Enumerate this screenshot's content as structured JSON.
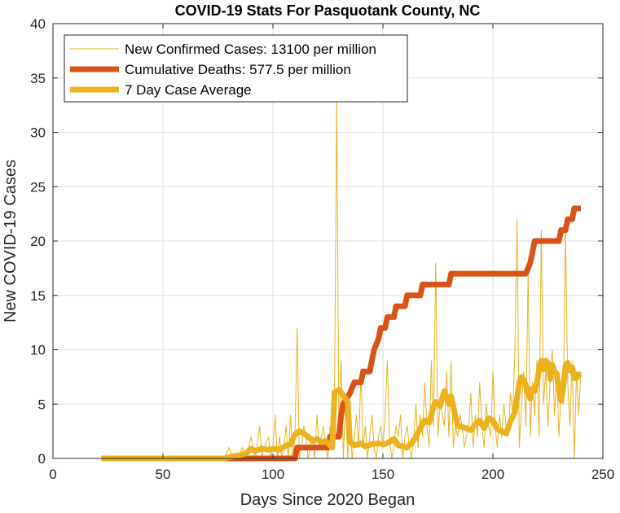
{
  "chart_data": {
    "type": "line",
    "title": "COVID-19 Stats For Pasquotank County, NC",
    "xlabel": "Days Since 2020 Began",
    "ylabel": "New COVID-19 Cases",
    "xlim": [
      0,
      250
    ],
    "ylim": [
      0,
      40
    ],
    "xticks": [
      0,
      50,
      100,
      150,
      200,
      250
    ],
    "yticks": [
      0,
      5,
      10,
      15,
      20,
      25,
      30,
      35,
      40
    ],
    "x_tick_labels": [
      "0",
      "50",
      "100",
      "150",
      "200",
      "250"
    ],
    "y_tick_labels": [
      "0",
      "5",
      "10",
      "15",
      "20",
      "25",
      "30",
      "35",
      "40"
    ],
    "grid": true,
    "legend_position": "top-left",
    "series": [
      {
        "name": "New Confirmed Cases: 13100 per million",
        "color": "#EDB120",
        "line_width": "thin",
        "points": [
          [
            22,
            0
          ],
          [
            40,
            0
          ],
          [
            60,
            0
          ],
          [
            78,
            0
          ],
          [
            80,
            1
          ],
          [
            82,
            0
          ],
          [
            84,
            0
          ],
          [
            86,
            1
          ],
          [
            88,
            0
          ],
          [
            90,
            2
          ],
          [
            92,
            0
          ],
          [
            94,
            3
          ],
          [
            95,
            0
          ],
          [
            96,
            1
          ],
          [
            98,
            2
          ],
          [
            99,
            0
          ],
          [
            100,
            1
          ],
          [
            101,
            4
          ],
          [
            102,
            0
          ],
          [
            103,
            2
          ],
          [
            104,
            0
          ],
          [
            105,
            1
          ],
          [
            106,
            3
          ],
          [
            107,
            0
          ],
          [
            108,
            4
          ],
          [
            109,
            0
          ],
          [
            110,
            2
          ],
          [
            111,
            12
          ],
          [
            112,
            0
          ],
          [
            113,
            1
          ],
          [
            114,
            3
          ],
          [
            115,
            2
          ],
          [
            116,
            0
          ],
          [
            117,
            1
          ],
          [
            118,
            2
          ],
          [
            119,
            0
          ],
          [
            120,
            4
          ],
          [
            121,
            1
          ],
          [
            122,
            2
          ],
          [
            123,
            3
          ],
          [
            124,
            1
          ],
          [
            125,
            0
          ],
          [
            126,
            3
          ],
          [
            127,
            1
          ],
          [
            128,
            6
          ],
          [
            129,
            33
          ],
          [
            130,
            2
          ],
          [
            131,
            9
          ],
          [
            132,
            0
          ],
          [
            133,
            5
          ],
          [
            134,
            0
          ],
          [
            135,
            3
          ],
          [
            136,
            0
          ],
          [
            137,
            2
          ],
          [
            138,
            4
          ],
          [
            139,
            1
          ],
          [
            140,
            8
          ],
          [
            141,
            1
          ],
          [
            142,
            3
          ],
          [
            143,
            0
          ],
          [
            144,
            2
          ],
          [
            145,
            4
          ],
          [
            146,
            1
          ],
          [
            147,
            0
          ],
          [
            148,
            2
          ],
          [
            149,
            3
          ],
          [
            150,
            1
          ],
          [
            151,
            4
          ],
          [
            152,
            9
          ],
          [
            153,
            2
          ],
          [
            154,
            0
          ],
          [
            155,
            1
          ],
          [
            156,
            3
          ],
          [
            157,
            2
          ],
          [
            158,
            4
          ],
          [
            159,
            0
          ],
          [
            160,
            2
          ],
          [
            161,
            3
          ],
          [
            162,
            1
          ],
          [
            163,
            0
          ],
          [
            164,
            2
          ],
          [
            165,
            5
          ],
          [
            166,
            1
          ],
          [
            167,
            4
          ],
          [
            168,
            2
          ],
          [
            169,
            7
          ],
          [
            170,
            3
          ],
          [
            171,
            1
          ],
          [
            172,
            9
          ],
          [
            173,
            3
          ],
          [
            174,
            18
          ],
          [
            175,
            2
          ],
          [
            176,
            5
          ],
          [
            177,
            4
          ],
          [
            178,
            3
          ],
          [
            179,
            8
          ],
          [
            180,
            2
          ],
          [
            181,
            9
          ],
          [
            182,
            1
          ],
          [
            183,
            3
          ],
          [
            184,
            2
          ],
          [
            185,
            4
          ],
          [
            186,
            3
          ],
          [
            187,
            1
          ],
          [
            188,
            2
          ],
          [
            189,
            3
          ],
          [
            190,
            6
          ],
          [
            191,
            1
          ],
          [
            192,
            4
          ],
          [
            193,
            2
          ],
          [
            194,
            7
          ],
          [
            195,
            3
          ],
          [
            196,
            1
          ],
          [
            197,
            5
          ],
          [
            198,
            3
          ],
          [
            199,
            2
          ],
          [
            200,
            8
          ],
          [
            201,
            3
          ],
          [
            202,
            1
          ],
          [
            203,
            4
          ],
          [
            204,
            2
          ],
          [
            205,
            5
          ],
          [
            206,
            3
          ],
          [
            207,
            2
          ],
          [
            208,
            6
          ],
          [
            209,
            4
          ],
          [
            210,
            10
          ],
          [
            211,
            22
          ],
          [
            212,
            1
          ],
          [
            213,
            5
          ],
          [
            214,
            8
          ],
          [
            215,
            3
          ],
          [
            216,
            17
          ],
          [
            217,
            2
          ],
          [
            218,
            7
          ],
          [
            219,
            4
          ],
          [
            220,
            9
          ],
          [
            221,
            2
          ],
          [
            222,
            21
          ],
          [
            223,
            5
          ],
          [
            224,
            8
          ],
          [
            225,
            3
          ],
          [
            226,
            7
          ],
          [
            227,
            10
          ],
          [
            228,
            4
          ],
          [
            229,
            8
          ],
          [
            230,
            2
          ],
          [
            231,
            6
          ],
          [
            232,
            5
          ],
          [
            233,
            21
          ],
          [
            234,
            7
          ],
          [
            235,
            3
          ],
          [
            236,
            9
          ],
          [
            237,
            0
          ],
          [
            238,
            8
          ],
          [
            239,
            4
          ],
          [
            240,
            8
          ]
        ]
      },
      {
        "name": "Cumulative Deaths: 577.5 per million",
        "color": "#D95319",
        "line_width": "thick",
        "points": [
          [
            22,
            0
          ],
          [
            100,
            0
          ],
          [
            110,
            0
          ],
          [
            111,
            1
          ],
          [
            120,
            1
          ],
          [
            121,
            1
          ],
          [
            125,
            1
          ],
          [
            126,
            2
          ],
          [
            130,
            2
          ],
          [
            131,
            4
          ],
          [
            132,
            5
          ],
          [
            135,
            6
          ],
          [
            137,
            7
          ],
          [
            140,
            7
          ],
          [
            141,
            8
          ],
          [
            144,
            8
          ],
          [
            145,
            9
          ],
          [
            146,
            10
          ],
          [
            148,
            11
          ],
          [
            149,
            12
          ],
          [
            151,
            12
          ],
          [
            152,
            13
          ],
          [
            155,
            13
          ],
          [
            156,
            14
          ],
          [
            160,
            14
          ],
          [
            161,
            15
          ],
          [
            167,
            15
          ],
          [
            168,
            16
          ],
          [
            180,
            16
          ],
          [
            181,
            17
          ],
          [
            200,
            17
          ],
          [
            205,
            17
          ],
          [
            215,
            17
          ],
          [
            217,
            18
          ],
          [
            218,
            19
          ],
          [
            219,
            20
          ],
          [
            224,
            20
          ],
          [
            225,
            20
          ],
          [
            230,
            20
          ],
          [
            231,
            21
          ],
          [
            233,
            21
          ],
          [
            234,
            22
          ],
          [
            236,
            22
          ],
          [
            237,
            23
          ],
          [
            240,
            23
          ]
        ]
      },
      {
        "name": "7 Day Case Average",
        "color": "#EDB120",
        "line_width": "thick",
        "points": [
          [
            22,
            0
          ],
          [
            40,
            0
          ],
          [
            60,
            0
          ],
          [
            78,
            0
          ],
          [
            82,
            0.2
          ],
          [
            85,
            0.3
          ],
          [
            88,
            0.5
          ],
          [
            90,
            0.9
          ],
          [
            92,
            0.7
          ],
          [
            95,
            0.9
          ],
          [
            98,
            0.8
          ],
          [
            100,
            0.9
          ],
          [
            103,
            0.8
          ],
          [
            106,
            1.2
          ],
          [
            108,
            1.3
          ],
          [
            110,
            2.2
          ],
          [
            112,
            2.5
          ],
          [
            114,
            2.3
          ],
          [
            116,
            2.0
          ],
          [
            118,
            1.6
          ],
          [
            120,
            1.8
          ],
          [
            122,
            1.5
          ],
          [
            124,
            1.6
          ],
          [
            126,
            1.2
          ],
          [
            127,
            1.0
          ],
          [
            128,
            6.1
          ],
          [
            130,
            6.3
          ],
          [
            132,
            5.8
          ],
          [
            134,
            5.2
          ],
          [
            135,
            1.5
          ],
          [
            137,
            1.2
          ],
          [
            140,
            1.4
          ],
          [
            142,
            1.1
          ],
          [
            145,
            1.3
          ],
          [
            148,
            1.4
          ],
          [
            150,
            1.3
          ],
          [
            152,
            1.4
          ],
          [
            155,
            1.8
          ],
          [
            157,
            1.2
          ],
          [
            159,
            1.1
          ],
          [
            161,
            1.0
          ],
          [
            163,
            1.4
          ],
          [
            165,
            2.0
          ],
          [
            167,
            2.8
          ],
          [
            169,
            3.5
          ],
          [
            171,
            3.3
          ],
          [
            172,
            4.0
          ],
          [
            173,
            4.8
          ],
          [
            174,
            5.2
          ],
          [
            175,
            5.0
          ],
          [
            176,
            4.8
          ],
          [
            177,
            5.6
          ],
          [
            178,
            6.2
          ],
          [
            179,
            5.6
          ],
          [
            180,
            5.0
          ],
          [
            181,
            5.7
          ],
          [
            182,
            4.8
          ],
          [
            183,
            3.8
          ],
          [
            184,
            3.0
          ],
          [
            186,
            2.9
          ],
          [
            188,
            2.8
          ],
          [
            190,
            2.6
          ],
          [
            192,
            3.1
          ],
          [
            194,
            3.5
          ],
          [
            196,
            2.8
          ],
          [
            198,
            3.7
          ],
          [
            200,
            3.5
          ],
          [
            202,
            2.7
          ],
          [
            204,
            2.5
          ],
          [
            206,
            2.3
          ],
          [
            208,
            3.4
          ],
          [
            210,
            4.3
          ],
          [
            211,
            5.6
          ],
          [
            212,
            7.0
          ],
          [
            213,
            7.5
          ],
          [
            214,
            7.2
          ],
          [
            215,
            6.7
          ],
          [
            216,
            6.0
          ],
          [
            217,
            5.5
          ],
          [
            218,
            6.4
          ],
          [
            219,
            6.2
          ],
          [
            220,
            7.0
          ],
          [
            221,
            8.1
          ],
          [
            222,
            9.0
          ],
          [
            223,
            8.2
          ],
          [
            224,
            9.0
          ],
          [
            225,
            8.8
          ],
          [
            226,
            7.3
          ],
          [
            227,
            8.6
          ],
          [
            228,
            8.0
          ],
          [
            229,
            7.8
          ],
          [
            230,
            6.3
          ],
          [
            231,
            5.3
          ],
          [
            232,
            6.6
          ],
          [
            233,
            8.5
          ],
          [
            234,
            8.8
          ],
          [
            235,
            8.1
          ],
          [
            236,
            8.4
          ],
          [
            237,
            7.4
          ],
          [
            238,
            7.4
          ],
          [
            239,
            7.7
          ],
          [
            240,
            7.8
          ]
        ]
      }
    ]
  }
}
